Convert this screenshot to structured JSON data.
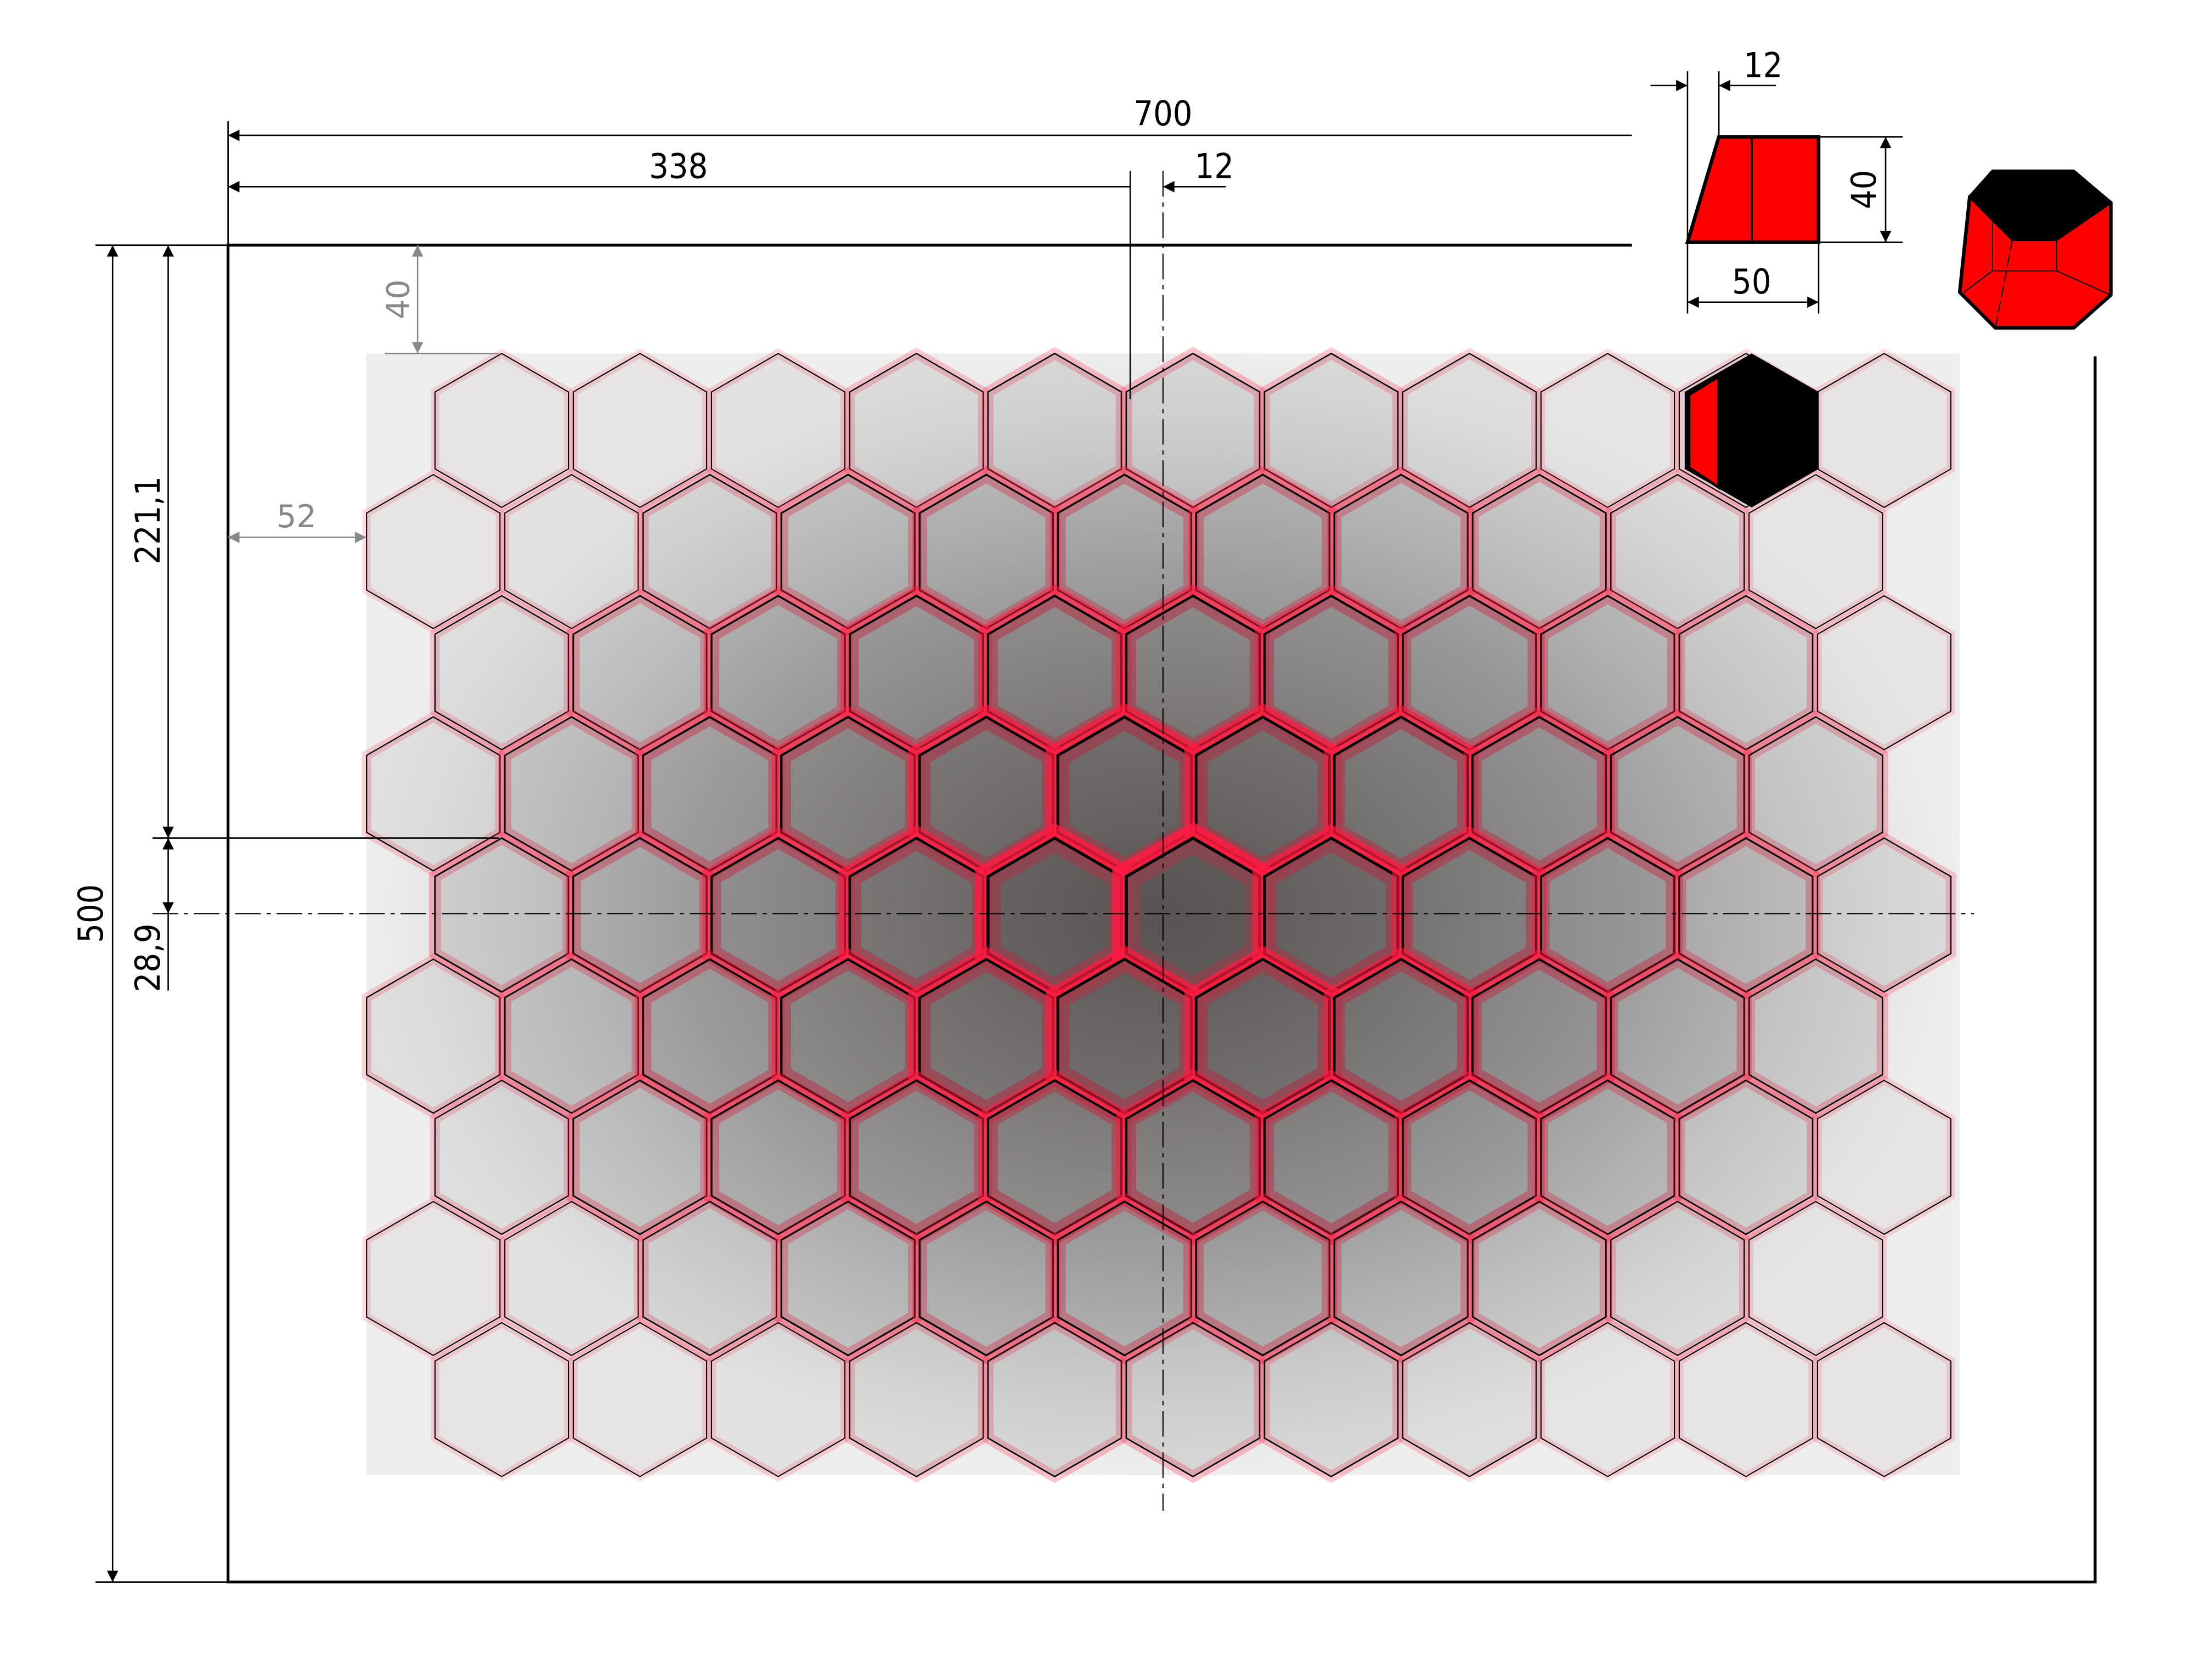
{
  "drawing": {
    "dimensions": {
      "overall_width": "700",
      "left_to_axis": "338",
      "offset_small": "12",
      "overall_height": "500",
      "top_to_row": "221,1",
      "row_offset": "28,9",
      "top_margin": "40",
      "left_margin": "52"
    },
    "tile_profile": {
      "chamfer": "12",
      "height": "40",
      "width": "50"
    },
    "colors": {
      "accent_red": "#ff0000",
      "glow_red": "#ff1a40",
      "tile_dark": "#5a5555",
      "line": "#000000",
      "dim_gray": "#888888"
    },
    "grid": {
      "rows": 9,
      "cols": 11,
      "shape": "pointy-top hexagon"
    }
  }
}
